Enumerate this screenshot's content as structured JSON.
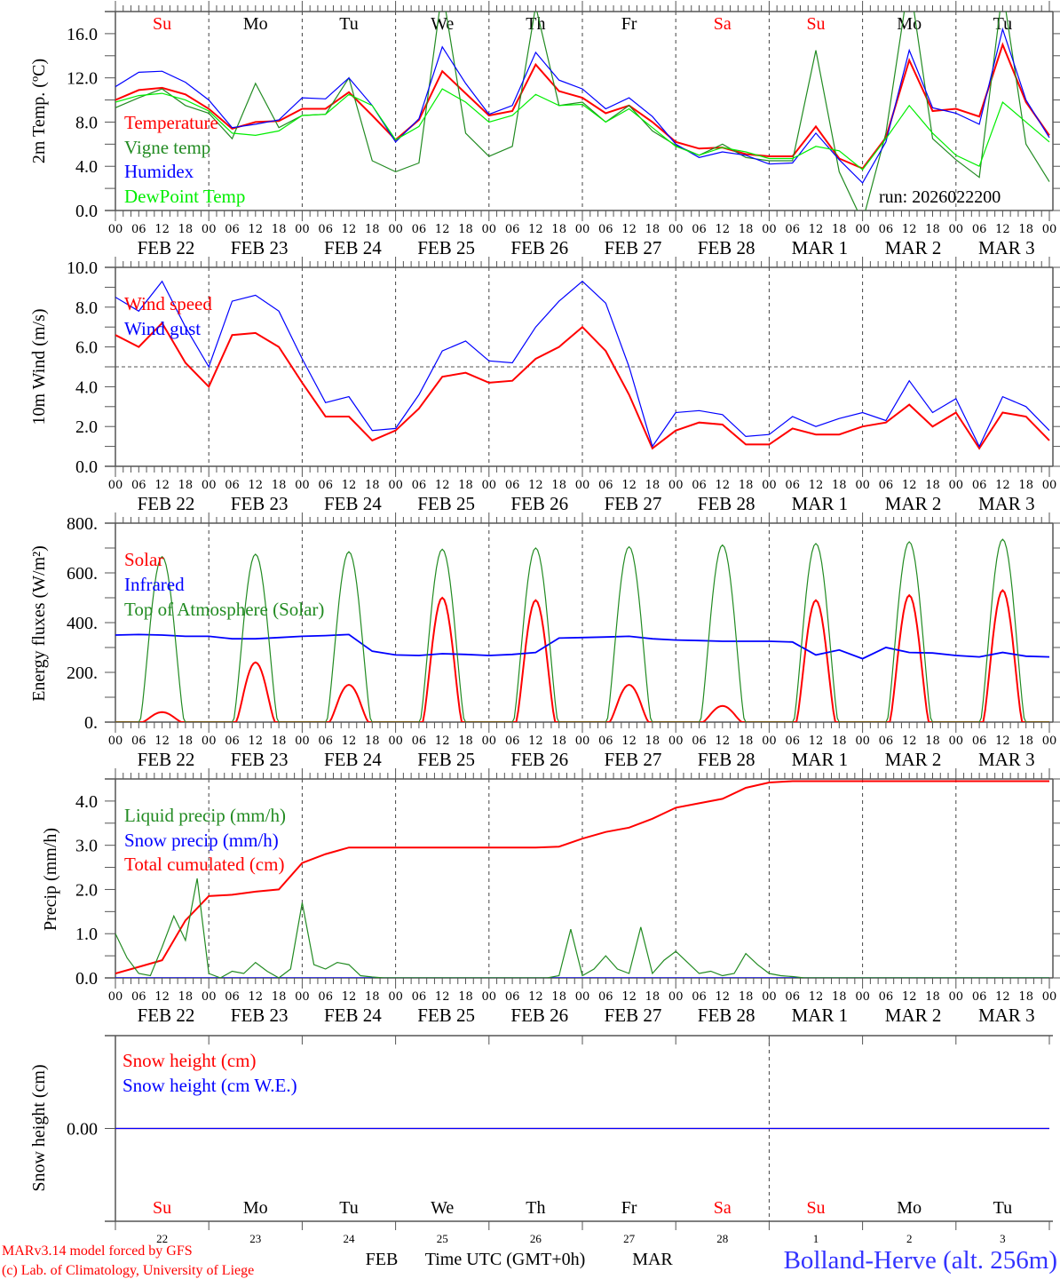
{
  "run_label": "run: 2026022200",
  "site_label": "Bolland-Herve (alt. 256m)",
  "credits": [
    "MARv3.14 model forced by GFS",
    "(c) Lab. of Climatology, University of Liege"
  ],
  "colors": {
    "red": "#ff0000",
    "green": "#228b22",
    "blue": "#0000ff",
    "lightgreen": "#00ee00",
    "site": "#3333ff"
  },
  "axis": {
    "start": "FEB 22 00 UTC",
    "xlabel": "Time UTC (GMT+0h)",
    "hour_labels": [
      "00",
      "06",
      "12",
      "18"
    ],
    "date_labels": [
      "FEB 22",
      "FEB 23",
      "FEB 24",
      "FEB 25",
      "FEB 26",
      "FEB 27",
      "FEB 28",
      "MAR  1",
      "MAR  2",
      "MAR  3"
    ],
    "day_names": [
      {
        "label": "Su",
        "color": "#ff0000"
      },
      {
        "label": "Mo",
        "color": "#000000"
      },
      {
        "label": "Tu",
        "color": "#000000"
      },
      {
        "label": "We",
        "color": "#000000"
      },
      {
        "label": "Th",
        "color": "#000000"
      },
      {
        "label": "Fr",
        "color": "#000000"
      },
      {
        "label": "Sa",
        "color": "#ff0000"
      },
      {
        "label": "Su",
        "color": "#ff0000"
      },
      {
        "label": "Mo",
        "color": "#000000"
      },
      {
        "label": "Tu",
        "color": "#000000"
      }
    ],
    "bottom_day_numbers": [
      "22",
      "23",
      "24",
      "25",
      "26",
      "27",
      "28",
      "1",
      "2",
      "3"
    ],
    "month_labels": [
      "FEB",
      "MAR"
    ]
  },
  "chart_data": [
    {
      "type": "line",
      "ylabel": "2m Temp. (ºC)",
      "ylim": [
        0,
        18
      ],
      "yticks": [
        "0.0",
        "4.0",
        "8.0",
        "12.0",
        "16.0"
      ],
      "ytick_values": [
        0,
        4,
        8,
        12,
        16
      ],
      "grid": false,
      "legend_placement": "left",
      "series": [
        {
          "name": "Temperature",
          "color": "#ff0000",
          "step_hours": 6,
          "values": [
            10.0,
            10.9,
            11.1,
            10.5,
            9.2,
            7.4,
            8.0,
            8.1,
            9.2,
            9.2,
            10.7,
            8.6,
            6.4,
            8.2,
            12.6,
            10.6,
            8.6,
            9.0,
            13.2,
            10.8,
            10.2,
            8.8,
            9.5,
            8.0,
            6.2,
            5.6,
            5.7,
            5.1,
            4.9,
            4.9,
            7.6,
            4.7,
            3.8,
            6.6,
            13.6,
            9.0,
            9.2,
            8.5,
            15.0,
            9.8,
            6.8
          ]
        },
        {
          "name": "Vigne temp",
          "color": "#228b22",
          "step_hours": 6,
          "values": [
            9.3,
            10.2,
            11.0,
            9.5,
            8.8,
            6.5,
            11.5,
            7.5,
            8.6,
            8.7,
            12.0,
            4.5,
            3.5,
            4.3,
            20.0,
            7.0,
            4.9,
            5.8,
            18.5,
            9.5,
            9.8,
            8.0,
            9.5,
            7.2,
            5.9,
            5.0,
            6.0,
            4.8,
            4.5,
            4.5,
            14.5,
            3.5,
            -1.0,
            7.0,
            21.0,
            6.5,
            4.6,
            3.0,
            20.0,
            6.0,
            2.6
          ]
        },
        {
          "name": "Humidex",
          "color": "#0000ff",
          "step_hours": 6,
          "values": [
            11.2,
            12.5,
            12.6,
            11.6,
            10.0,
            7.5,
            7.8,
            8.2,
            10.2,
            10.1,
            12.0,
            9.5,
            6.2,
            8.3,
            14.8,
            11.5,
            8.7,
            9.5,
            14.3,
            11.8,
            11.0,
            9.2,
            10.2,
            8.5,
            6.0,
            4.8,
            5.3,
            5.0,
            4.2,
            4.3,
            7.0,
            4.6,
            2.5,
            6.2,
            14.5,
            9.3,
            8.8,
            7.8,
            16.4,
            10.0,
            6.6
          ]
        },
        {
          "name": "DewPoint Temp",
          "color": "#00ee00",
          "step_hours": 6,
          "values": [
            9.8,
            10.4,
            10.6,
            10.0,
            9.0,
            7.0,
            6.8,
            7.2,
            8.6,
            8.7,
            10.5,
            9.5,
            6.4,
            7.6,
            11.0,
            9.8,
            8.0,
            8.6,
            10.5,
            9.5,
            9.6,
            8.0,
            9.2,
            7.5,
            5.8,
            5.0,
            5.7,
            5.3,
            4.7,
            4.7,
            5.8,
            5.4,
            3.7,
            6.5,
            9.5,
            7.0,
            5.0,
            4.0,
            9.8,
            8.0,
            6.2
          ]
        }
      ]
    },
    {
      "type": "line",
      "ylabel": "10m Wind (m/s)",
      "ylim": [
        0,
        10
      ],
      "yticks": [
        "0.0",
        "2.0",
        "4.0",
        "6.0",
        "8.0",
        "10.0"
      ],
      "ytick_values": [
        0,
        2,
        4,
        6,
        8,
        10
      ],
      "reference_line": 5.0,
      "grid": false,
      "legend_placement": "top-left",
      "series": [
        {
          "name": "Wind speed",
          "color": "#ff0000",
          "step_hours": 6,
          "values": [
            6.6,
            6.0,
            7.2,
            5.2,
            4.0,
            6.6,
            6.7,
            6.0,
            4.2,
            2.5,
            2.5,
            1.3,
            1.8,
            2.9,
            4.5,
            4.7,
            4.2,
            4.3,
            5.4,
            6.0,
            7.0,
            5.8,
            3.6,
            0.9,
            1.8,
            2.2,
            2.1,
            1.1,
            1.1,
            1.9,
            1.6,
            1.6,
            2.0,
            2.2,
            3.1,
            2.0,
            2.7,
            0.9,
            2.7,
            2.5,
            1.3
          ]
        },
        {
          "name": "Wind gust",
          "color": "#0000ff",
          "step_hours": 6,
          "values": [
            8.5,
            7.8,
            9.3,
            7.0,
            5.0,
            8.3,
            8.6,
            7.8,
            5.4,
            3.2,
            3.5,
            1.8,
            1.9,
            3.6,
            5.8,
            6.3,
            5.3,
            5.2,
            7.0,
            8.3,
            9.3,
            8.2,
            5.0,
            1.0,
            2.7,
            2.8,
            2.6,
            1.5,
            1.6,
            2.5,
            2.0,
            2.4,
            2.7,
            2.3,
            4.3,
            2.7,
            3.4,
            1.0,
            3.5,
            3.0,
            1.8
          ]
        }
      ]
    },
    {
      "type": "line",
      "ylabel": "Energy fluxes (W/m²)",
      "ylim": [
        0,
        800
      ],
      "yticks": [
        "0.",
        "200.",
        "400.",
        "600.",
        "800."
      ],
      "ytick_values": [
        0,
        200,
        400,
        600,
        800
      ],
      "grid": false,
      "legend_placement": "top-left",
      "series": [
        {
          "name": "Solar",
          "color": "#ff0000",
          "daily_peak": [
            40,
            240,
            150,
            500,
            490,
            150,
            65,
            490,
            510,
            530
          ],
          "daylight_utc": [
            7,
            17
          ]
        },
        {
          "name": "Infrared",
          "color": "#0000ff",
          "step_hours": 6,
          "values": [
            350,
            352,
            350,
            345,
            345,
            335,
            335,
            340,
            345,
            348,
            352,
            285,
            270,
            268,
            275,
            272,
            268,
            272,
            280,
            338,
            340,
            342,
            345,
            335,
            330,
            328,
            325,
            325,
            325,
            322,
            270,
            290,
            255,
            300,
            280,
            278,
            268,
            262,
            280,
            265,
            262
          ]
        },
        {
          "name": "Top of Atmosphere (Solar)",
          "color": "#228b22",
          "daily_peak": [
            665,
            675,
            685,
            695,
            700,
            705,
            712,
            718,
            725,
            735
          ],
          "daylight_utc": [
            6.3,
            17.7
          ]
        }
      ]
    },
    {
      "type": "line",
      "ylabel": "Precip (mm/h)",
      "ylim": [
        0,
        4.5
      ],
      "yticks": [
        "0.0",
        "1.0",
        "2.0",
        "3.0",
        "4.0"
      ],
      "ytick_values": [
        0,
        1,
        2,
        3,
        4
      ],
      "grid": false,
      "legend_placement": "top-left",
      "series": [
        {
          "name": "Liquid precip (mm/h)",
          "color": "#228b22",
          "step_hours": 3,
          "values": [
            1.0,
            0.45,
            0.1,
            0.05,
            0.7,
            1.4,
            0.85,
            2.25,
            0.1,
            0.0,
            0.15,
            0.1,
            0.35,
            0.15,
            0.0,
            0.2,
            1.7,
            0.3,
            0.2,
            0.35,
            0.3,
            0.05,
            0.02,
            0,
            0,
            0,
            0,
            0,
            0,
            0,
            0,
            0,
            0,
            0,
            0,
            0,
            0,
            0,
            0.05,
            1.1,
            0.05,
            0.2,
            0.5,
            0.2,
            0.1,
            1.15,
            0.1,
            0.4,
            0.6,
            0.35,
            0.1,
            0.15,
            0.05,
            0.1,
            0.55,
            0.3,
            0.1,
            0.05,
            0.03,
            0,
            0,
            0,
            0,
            0,
            0,
            0,
            0,
            0,
            0,
            0,
            0,
            0,
            0,
            0,
            0,
            0,
            0,
            0,
            0,
            0,
            0
          ]
        },
        {
          "name": "Snow precip (mm/h)",
          "color": "#0000ff",
          "step_hours": 240,
          "values": [
            0,
            0
          ]
        },
        {
          "name": "Total cumulated (cm)",
          "color": "#ff0000",
          "step_hours": 6,
          "values": [
            0.1,
            0.25,
            0.4,
            1.3,
            1.85,
            1.88,
            1.95,
            2.0,
            2.6,
            2.8,
            2.95,
            2.95,
            2.95,
            2.95,
            2.95,
            2.95,
            2.95,
            2.95,
            2.95,
            2.97,
            3.15,
            3.3,
            3.4,
            3.6,
            3.85,
            3.95,
            4.05,
            4.3,
            4.42,
            4.45,
            4.45,
            4.45,
            4.45,
            4.45,
            4.45,
            4.45,
            4.45,
            4.45,
            4.45,
            4.45,
            4.45
          ]
        }
      ]
    },
    {
      "type": "line",
      "ylabel": "Snow height (cm)",
      "ylim": [
        -1,
        1
      ],
      "yticks": [
        "0.00"
      ],
      "ytick_values": [
        0
      ],
      "grid": false,
      "legend_placement": "top-left",
      "series": [
        {
          "name": "Snow height (cm)",
          "color": "#ff0000",
          "step_hours": 240,
          "values": [
            0,
            0
          ]
        },
        {
          "name": "Snow height (cm W.E.)",
          "color": "#0000ff",
          "step_hours": 240,
          "values": [
            0,
            0
          ],
          "hidden_under_red": true
        }
      ]
    }
  ]
}
